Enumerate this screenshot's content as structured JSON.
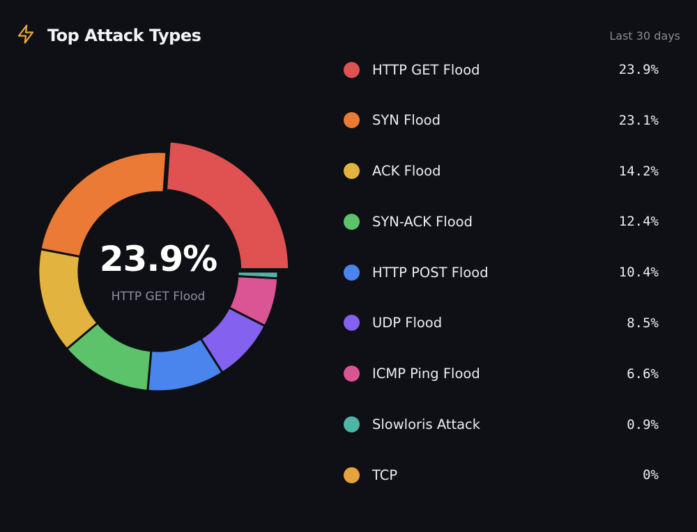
{
  "header": {
    "title": "Top Attack Types",
    "range": "Last 30 days",
    "icon": "lightning-bolt-icon",
    "icon_color": "#e6a93a"
  },
  "center": {
    "value": "23.9%",
    "label": "HTTP GET Flood"
  },
  "chart_data": {
    "type": "pie",
    "variant": "donut",
    "highlighted": "HTTP GET Flood",
    "categories": [
      "HTTP GET Flood",
      "SYN Flood",
      "ACK Flood",
      "SYN-ACK Flood",
      "HTTP POST Flood",
      "UDP Flood",
      "ICMP Ping Flood",
      "Slowloris Attack",
      "TCP"
    ],
    "values": [
      23.9,
      23.1,
      14.2,
      12.4,
      10.4,
      8.5,
      6.6,
      0.9,
      0
    ],
    "labels": [
      "23.9%",
      "23.1%",
      "14.2%",
      "12.4%",
      "10.4%",
      "8.5%",
      "6.6%",
      "0.9%",
      "0%"
    ],
    "colors": [
      "#e05252",
      "#ea7a35",
      "#e3b340",
      "#5cc36a",
      "#4a85ee",
      "#8461ee",
      "#db5494",
      "#4fb6a6",
      "#e6a23c"
    ],
    "legend": "right"
  }
}
